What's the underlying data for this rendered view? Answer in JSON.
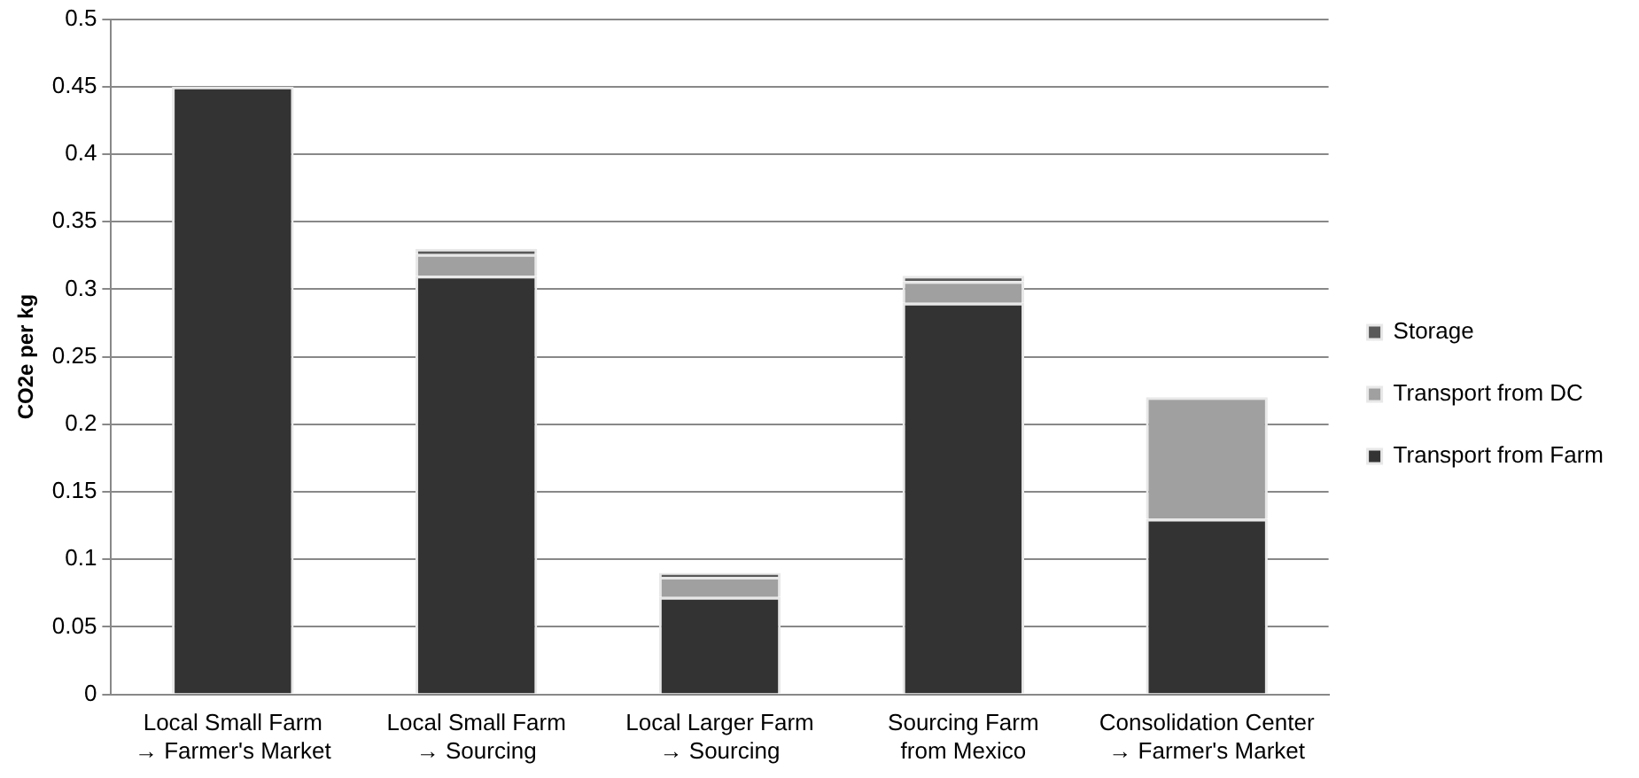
{
  "chart_data": {
    "type": "bar",
    "stacked": true,
    "ylabel": "CO2e per kg",
    "categories": [
      "Local Small Farm\n→ Farmer's Market",
      "Local Small Farm\n→ Sourcing",
      "Local Larger Farm\n→ Sourcing",
      "Sourcing Farm\nfrom Mexico",
      "Consolidation Center\n→ Farmer's Market"
    ],
    "series": [
      {
        "name": "Transport from Farm",
        "color": "#333333",
        "values": [
          0.45,
          0.31,
          0.072,
          0.29,
          0.13
        ]
      },
      {
        "name": "Transport from DC",
        "color": "#a0a0a0",
        "values": [
          0,
          0.016,
          0.015,
          0.016,
          0.09
        ]
      },
      {
        "name": "Storage",
        "color": "#595959",
        "values": [
          0,
          0.004,
          0.003,
          0.004,
          0
        ]
      }
    ],
    "ylim": [
      0,
      0.5
    ],
    "yticks": [
      0,
      0.05,
      0.1,
      0.15,
      0.2,
      0.25,
      0.3,
      0.35,
      0.4,
      0.45,
      0.5
    ],
    "grid": "y",
    "legend": "right"
  }
}
